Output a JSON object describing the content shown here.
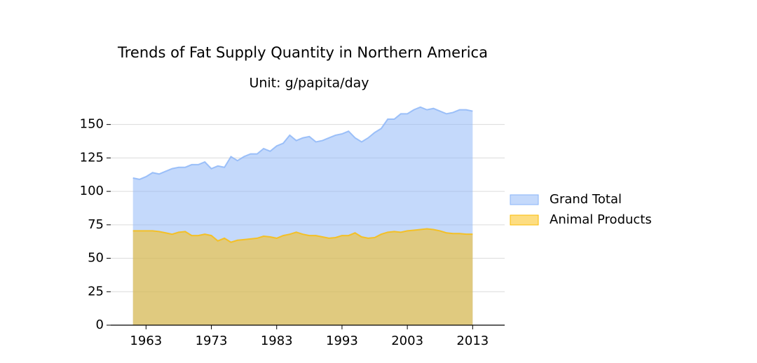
{
  "chart_data": {
    "type": "area",
    "title": "Trends of Fat Supply Quantity in Northern America",
    "subtitle": "Unit: g/papita/day",
    "x": [
      1961,
      1962,
      1963,
      1964,
      1965,
      1966,
      1967,
      1968,
      1969,
      1970,
      1971,
      1972,
      1973,
      1974,
      1975,
      1976,
      1977,
      1978,
      1979,
      1980,
      1981,
      1982,
      1983,
      1984,
      1985,
      1986,
      1987,
      1988,
      1989,
      1990,
      1991,
      1992,
      1993,
      1994,
      1995,
      1996,
      1997,
      1998,
      1999,
      2000,
      2001,
      2002,
      2003,
      2004,
      2005,
      2006,
      2007,
      2008,
      2009,
      2010,
      2011,
      2012,
      2013
    ],
    "series": [
      {
        "name": "Grand Total",
        "color": "#8ab4f8",
        "values": [
          110,
          109,
          111,
          114,
          113,
          115,
          117,
          118,
          118,
          120,
          120,
          122,
          117,
          119,
          118,
          126,
          123,
          126,
          128,
          128,
          132,
          130,
          134,
          136,
          142,
          138,
          140,
          141,
          137,
          138,
          140,
          142,
          143,
          145,
          140,
          137,
          140,
          144,
          147,
          154,
          154,
          158,
          158,
          161,
          163,
          161,
          162,
          160,
          158,
          159,
          161,
          161,
          160
        ]
      },
      {
        "name": "Animal Products",
        "color": "#fbbc04",
        "values": [
          70.5,
          70.5,
          70.5,
          70.5,
          70,
          69,
          68,
          69.5,
          70,
          67,
          67,
          68,
          67,
          63,
          65,
          62,
          63.5,
          64,
          64.5,
          65,
          66.5,
          66,
          65,
          67,
          68,
          69.5,
          68,
          67,
          67,
          66,
          65,
          65.5,
          67,
          67,
          69,
          66,
          65,
          65.5,
          68,
          69.5,
          70,
          69.5,
          70.5,
          71,
          71.5,
          72,
          71.5,
          70.5,
          69,
          68.5,
          68.5,
          68,
          68
        ]
      }
    ],
    "xlim": [
      1957.6,
      2017.9
    ],
    "xticks": [
      1963,
      1973,
      1983,
      1993,
      2003,
      2013
    ],
    "ylim": [
      0,
      165
    ],
    "yticks": [
      0,
      25,
      50,
      75,
      100,
      125,
      150
    ],
    "grid": true,
    "legend": "right"
  }
}
